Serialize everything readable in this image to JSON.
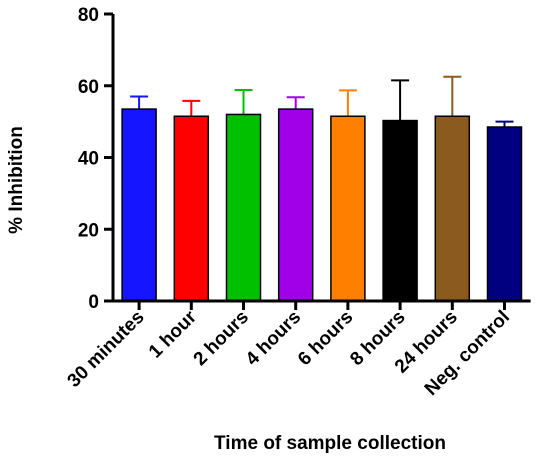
{
  "chart_data": {
    "type": "bar",
    "xlabel": "Time of sample collection",
    "ylabel": "% Inhibition",
    "ylim": [
      0,
      80
    ],
    "yticks": [
      0,
      20,
      40,
      60,
      80
    ],
    "grid": false,
    "categories": [
      "30 minutes",
      "1 hour",
      "2 hours",
      "4 hours",
      "6 hours",
      "8 hours",
      "24 hours",
      "Neg. control"
    ],
    "values": [
      53.5,
      51.5,
      52.0,
      53.5,
      51.5,
      50.3,
      51.5,
      48.5
    ],
    "error_upper": [
      57.0,
      55.8,
      58.8,
      56.8,
      58.7,
      61.5,
      62.5,
      50.0
    ],
    "colors": [
      "#1515ff",
      "#ff0000",
      "#00c000",
      "#a000e8",
      "#ff8000",
      "#000000",
      "#8b5a1e",
      "#000080"
    ]
  }
}
